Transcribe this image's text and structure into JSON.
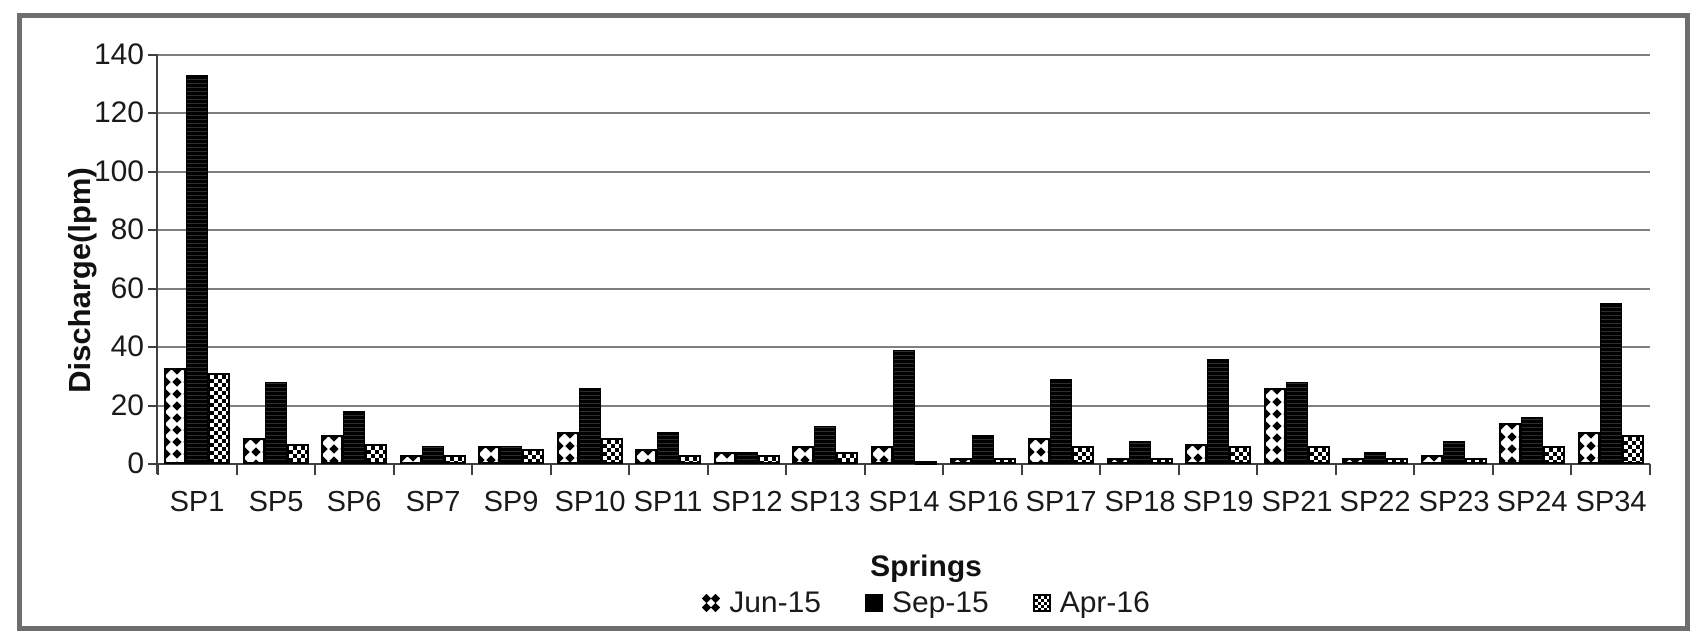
{
  "chart_data": {
    "type": "bar",
    "title": "",
    "xlabel": "Springs",
    "ylabel": "Discharge(lpm)",
    "ylim": [
      0,
      140
    ],
    "yticks": [
      0,
      20,
      40,
      60,
      80,
      100,
      120,
      140
    ],
    "grid": "horizontal gridlines every 20",
    "legend_position": "bottom center",
    "categories": [
      "SP1",
      "SP5",
      "SP6",
      "SP7",
      "SP9",
      "SP10",
      "SP11",
      "SP12",
      "SP13",
      "SP14",
      "SP16",
      "SP17",
      "SP18",
      "SP19",
      "SP21",
      "SP22",
      "SP23",
      "SP24",
      "SP34"
    ],
    "series": [
      {
        "name": "Jun-15",
        "pattern": "white-with-black-diamonds",
        "values": [
          33,
          9,
          10,
          3,
          6,
          11,
          5,
          4,
          6,
          6,
          2,
          9,
          2,
          7,
          26,
          2,
          3,
          14,
          11
        ]
      },
      {
        "name": "Sep-15",
        "pattern": "solid-black",
        "values": [
          133,
          28,
          18,
          6,
          6,
          26,
          11,
          4,
          13,
          39,
          10,
          29,
          8,
          36,
          28,
          4,
          8,
          16,
          55
        ]
      },
      {
        "name": "Apr-16",
        "pattern": "fine-checkerboard",
        "values": [
          31,
          7,
          7,
          3,
          5,
          9,
          3,
          3,
          4,
          1,
          2,
          6,
          2,
          6,
          6,
          2,
          2,
          6,
          10
        ]
      }
    ],
    "colors": {
      "bars": "#000000",
      "gridline": "#7f7f7f",
      "axis": "#404040",
      "frame_border": "#6e6e6e",
      "text": "#1a1a1a",
      "background": "#ffffff"
    }
  }
}
